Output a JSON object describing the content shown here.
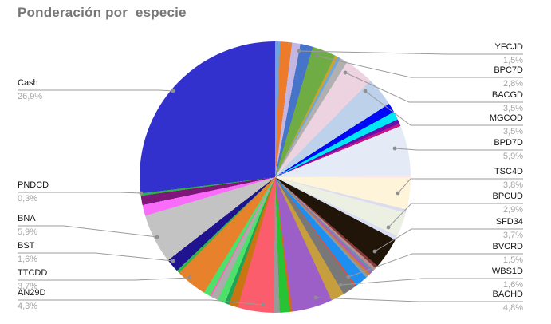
{
  "chart": {
    "title": "Ponderación por  especie"
  },
  "chart_data": {
    "type": "pie",
    "title": "Ponderación por  especie",
    "legend": "none",
    "start_angle_deg": 0,
    "direction": "clockwise",
    "value_format": "percent, comma decimal",
    "slices": [
      {
        "label": null,
        "pct_label": null,
        "value": 0.6,
        "color": "#6FA3DB"
      },
      {
        "label": null,
        "pct_label": null,
        "value": 1.4,
        "color": "#EC7C2B"
      },
      {
        "label": null,
        "pct_label": null,
        "value": 1.0,
        "color": "#C3B6E3"
      },
      {
        "label": "YFCJD",
        "pct_label": "1,5%",
        "value": 1.5,
        "color": "#4674C8"
      },
      {
        "label": "BPC7D",
        "pct_label": "2,8%",
        "value": 2.8,
        "color": "#6FAC44"
      },
      {
        "label": null,
        "pct_label": null,
        "value": 0.35,
        "color": "#C9A52F"
      },
      {
        "label": null,
        "pct_label": null,
        "value": 0.35,
        "color": "#6FA8DC"
      },
      {
        "label": null,
        "pct_label": null,
        "value": 0.9,
        "color": "#B0B0B0"
      },
      {
        "label": "BACGD",
        "pct_label": "3,5%",
        "value": 3.5,
        "color": "#EDD3DF"
      },
      {
        "label": "MGCOD",
        "pct_label": "3,5%",
        "value": 3.5,
        "color": "#BDD2EA"
      },
      {
        "label": null,
        "pct_label": null,
        "value": 1.1,
        "color": "#0009F5"
      },
      {
        "label": null,
        "pct_label": null,
        "value": 1.0,
        "color": "#00E8F5"
      },
      {
        "label": null,
        "pct_label": null,
        "value": 0.5,
        "color": "#6A0DAD"
      },
      {
        "label": null,
        "pct_label": null,
        "value": 0.35,
        "color": "#C71585"
      },
      {
        "label": "BPD7D",
        "pct_label": "5,9%",
        "value": 5.9,
        "color": "#E4EAF6"
      },
      {
        "label": null,
        "pct_label": null,
        "value": 0.3,
        "color": "#F6E8EE"
      },
      {
        "label": "TSC4D",
        "pct_label": "3,8%",
        "value": 3.8,
        "color": "#FDF4DA"
      },
      {
        "label": null,
        "pct_label": null,
        "value": 0.4,
        "color": "#DCDCF0"
      },
      {
        "label": "BPCUD",
        "pct_label": "2,9%",
        "value": 2.9,
        "color": "#EBF0E3"
      },
      {
        "label": null,
        "pct_label": null,
        "value": 0.5,
        "color": "#D9DEF3"
      },
      {
        "label": "SFD34",
        "pct_label": "3,7%",
        "value": 3.7,
        "color": "#21150A"
      },
      {
        "label": null,
        "pct_label": null,
        "value": 0.35,
        "color": "#8B3A3A"
      },
      {
        "label": null,
        "pct_label": null,
        "value": 0.35,
        "color": "#BC8F8F"
      },
      {
        "label": null,
        "pct_label": null,
        "value": 0.3,
        "color": "#6B8BB5"
      },
      {
        "label": null,
        "pct_label": null,
        "value": 0.3,
        "color": "#B05FB0"
      },
      {
        "label": null,
        "pct_label": null,
        "value": 0.3,
        "color": "#C9803C"
      },
      {
        "label": null,
        "pct_label": null,
        "value": 0.3,
        "color": "#8A9BAA"
      },
      {
        "label": "BVCRD",
        "pct_label": "1,5%",
        "value": 1.5,
        "color": "#1E8FF0"
      },
      {
        "label": null,
        "pct_label": null,
        "value": 0.2,
        "color": "#D94F3D"
      },
      {
        "label": "WBS1D",
        "pct_label": "1,6%",
        "value": 1.6,
        "color": "#787878"
      },
      {
        "label": null,
        "pct_label": null,
        "value": 1.6,
        "color": "#C79E3D"
      },
      {
        "label": "BACHD",
        "pct_label": "4,8%",
        "value": 4.8,
        "color": "#9B5FC7"
      },
      {
        "label": null,
        "pct_label": null,
        "value": 0.3,
        "color": "#D2691E"
      },
      {
        "label": null,
        "pct_label": null,
        "value": 1.2,
        "color": "#26C435"
      },
      {
        "label": null,
        "pct_label": null,
        "value": 0.7,
        "color": "#999999"
      },
      {
        "label": "AN29D",
        "pct_label": "4,3%",
        "value": 4.3,
        "color": "#FB5D6C"
      },
      {
        "label": null,
        "pct_label": null,
        "value": 1.1,
        "color": "#C87612"
      },
      {
        "label": null,
        "pct_label": null,
        "value": 0.5,
        "color": "#21A355"
      },
      {
        "label": null,
        "pct_label": null,
        "value": 0.9,
        "color": "#4DE06A"
      },
      {
        "label": null,
        "pct_label": null,
        "value": 0.85,
        "color": "#ABABAB"
      },
      {
        "label": null,
        "pct_label": null,
        "value": 0.2,
        "color": "#FF69B4"
      },
      {
        "label": null,
        "pct_label": null,
        "value": 0.8,
        "color": "#4DE06A"
      },
      {
        "label": "TTCDD",
        "pct_label": "3,7%",
        "value": 3.7,
        "color": "#E8812C"
      },
      {
        "label": null,
        "pct_label": null,
        "value": 0.4,
        "color": "#2DB84C"
      },
      {
        "label": "BST",
        "pct_label": "1,6%",
        "value": 1.6,
        "color": "#201390"
      },
      {
        "label": "BNA",
        "pct_label": "5,9%",
        "value": 5.9,
        "color": "#C3C3C3"
      },
      {
        "label": null,
        "pct_label": null,
        "value": 1.3,
        "color": "#F96BF9"
      },
      {
        "label": null,
        "pct_label": null,
        "value": 1.1,
        "color": "#7E1779"
      },
      {
        "label": "PNDCD",
        "pct_label": "0,3%",
        "value": 0.3,
        "color": "#2FAE49"
      },
      {
        "label": "Cash",
        "pct_label": "26,9%",
        "value": 26.9,
        "color": "#3331CE"
      }
    ],
    "leader_line_color": "#9B9B9B",
    "label_name_color": "#141414",
    "label_pct_color": "#A5A5A5"
  }
}
